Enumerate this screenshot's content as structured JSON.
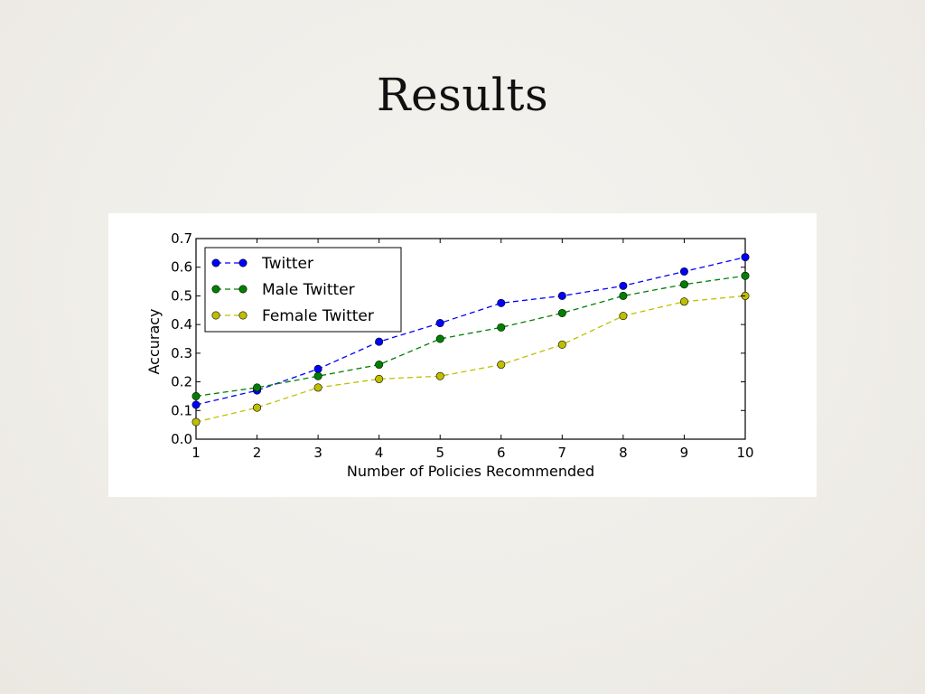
{
  "slide": {
    "title": "Results"
  },
  "chart_data": {
    "type": "line",
    "xlabel": "Number of Policies Recommended",
    "ylabel": "Accuracy",
    "xlim": [
      1,
      10
    ],
    "ylim": [
      0.0,
      0.7
    ],
    "x_ticks": [
      "1",
      "2",
      "3",
      "4",
      "5",
      "6",
      "7",
      "8",
      "9",
      "10"
    ],
    "y_ticks": [
      "0.0",
      "0.1",
      "0.2",
      "0.3",
      "0.4",
      "0.5",
      "0.6",
      "0.7"
    ],
    "x": [
      1,
      2,
      3,
      4,
      5,
      6,
      7,
      8,
      9,
      10
    ],
    "grid": false,
    "legend_position": "top-left",
    "line_style": "dashed",
    "marker": "circle",
    "series": [
      {
        "name": "Twitter",
        "color": "#0000ff",
        "values": [
          0.12,
          0.17,
          0.245,
          0.34,
          0.405,
          0.475,
          0.5,
          0.535,
          0.585,
          0.635
        ]
      },
      {
        "name": "Male Twitter",
        "color": "#008000",
        "values": [
          0.15,
          0.18,
          0.22,
          0.26,
          0.35,
          0.39,
          0.44,
          0.5,
          0.54,
          0.57
        ]
      },
      {
        "name": "Female Twitter",
        "color": "#bfbf00",
        "values": [
          0.06,
          0.11,
          0.18,
          0.21,
          0.22,
          0.26,
          0.33,
          0.43,
          0.48,
          0.5
        ]
      }
    ]
  }
}
